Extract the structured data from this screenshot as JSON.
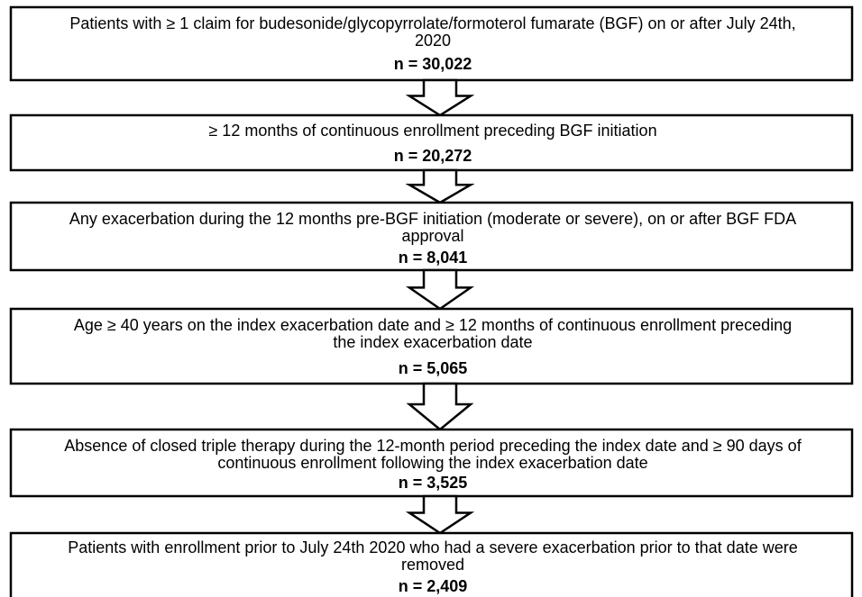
{
  "boxes": [
    {
      "lines": [
        "Patients with ≥ 1 claim for budesonide/glycopyrrolate/formoterol fumarate (BGF) on or after July 24th,",
        "2020"
      ],
      "n": "n = 30,022"
    },
    {
      "lines": [
        "≥ 12 months of continuous enrollment preceding BGF initiation"
      ],
      "n": "n = 20,272"
    },
    {
      "lines": [
        "Any exacerbation during the 12 months pre-BGF initiation (moderate or severe), on or after BGF FDA",
        "approval"
      ],
      "n": "n = 8,041"
    },
    {
      "lines": [
        "Age ≥ 40 years on the index exacerbation date and ≥ 12 months of continuous enrollment preceding",
        "the index exacerbation date"
      ],
      "n": "n = 5,065"
    },
    {
      "lines": [
        "Absence of closed triple therapy during the 12-month period preceding the index date and ≥ 90 days of",
        "continuous enrollment following the index exacerbation date"
      ],
      "n": "n = 3,525"
    },
    {
      "lines": [
        "Patients with enrollment prior to July 24th 2020 who had a severe exacerbation prior to that date were",
        "removed"
      ],
      "n": "n = 2,409"
    }
  ]
}
